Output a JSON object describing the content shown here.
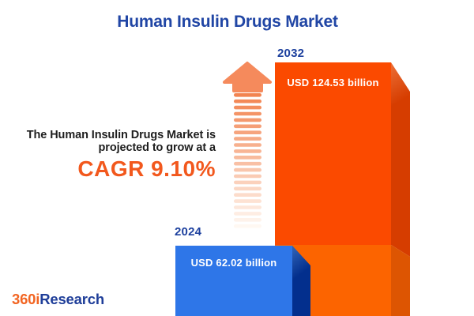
{
  "title": "Human Insulin Drugs Market",
  "subtitle": {
    "line1": "The Human Insulin Drugs Market is",
    "line2": "projected to grow at a",
    "cagr_text": "CAGR 9.10%"
  },
  "chart_data": {
    "type": "bar",
    "title": "Human Insulin Drugs Market",
    "categories": [
      "2024",
      "2032"
    ],
    "values": [
      62.02,
      124.53
    ],
    "unit": "USD billion",
    "value_labels": [
      "USD 62.02 billion",
      "USD 124.53 billion"
    ],
    "cagr_percent": 9.1,
    "bar_colors": [
      "#2E76E8",
      "#FB4A00"
    ],
    "legend_position": "none",
    "grid": false
  },
  "logo": {
    "prefix": "360i",
    "suffix": "Research"
  },
  "colors": {
    "title_blue": "#2146A5",
    "accent_orange": "#F2581D",
    "text_dark": "#1E1E1E",
    "bar_blue_front": "#2E76E8",
    "bar_blue_side": "#032F8D",
    "bar_orange_front_upper": "#FB4A00",
    "bar_orange_front_lower": "#FC6400",
    "bar_orange_side_upper": "#D63D00",
    "bar_orange_side_lower": "#DD5502",
    "arrow_orange": "#F58A5C",
    "logo_orange": "#F26522",
    "logo_blue": "#1F3E99"
  }
}
